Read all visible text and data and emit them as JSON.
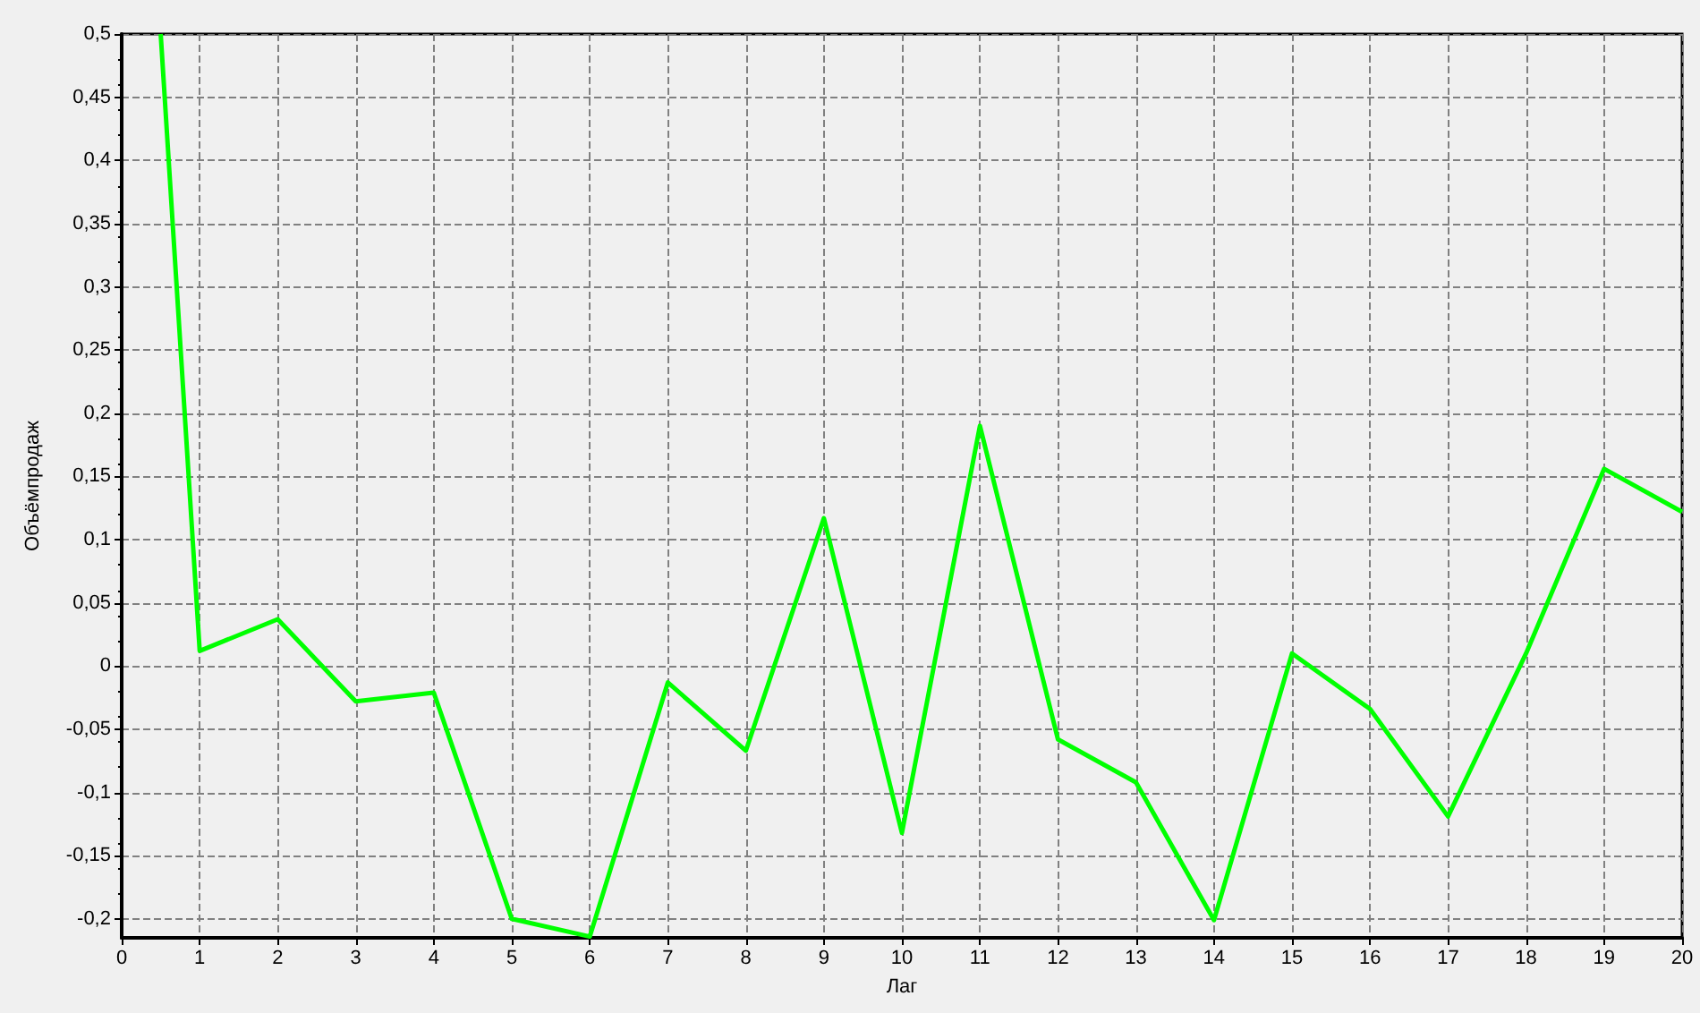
{
  "chart_data": {
    "type": "line",
    "xlabel": "Лаг",
    "ylabel": "Объёмпродаж",
    "x": [
      0.5,
      1,
      2,
      3,
      4,
      5,
      6,
      7,
      8,
      9,
      10,
      11,
      12,
      13,
      14,
      15,
      16,
      17,
      18,
      19,
      20
    ],
    "series": [
      {
        "color": "#00ff00",
        "values": [
          0.5,
          0.012,
          0.037,
          -0.028,
          -0.021,
          -0.2,
          -0.214,
          -0.013,
          -0.067,
          0.117,
          -0.132,
          0.19,
          -0.058,
          -0.092,
          -0.201,
          0.01,
          -0.034,
          -0.119,
          0.01,
          0.156,
          0.122
        ]
      }
    ],
    "xlim": [
      0,
      20
    ],
    "xticks": [
      0,
      1,
      2,
      3,
      4,
      5,
      6,
      7,
      8,
      9,
      10,
      11,
      12,
      13,
      14,
      15,
      16,
      17,
      18,
      19,
      20
    ],
    "ylim": [
      -0.215,
      0.5
    ],
    "yticks": [
      {
        "value": -0.2,
        "label": "-0,2"
      },
      {
        "value": -0.15,
        "label": "-0,15"
      },
      {
        "value": -0.1,
        "label": "-0,1"
      },
      {
        "value": -0.05,
        "label": "-0,05"
      },
      {
        "value": 0,
        "label": "0"
      },
      {
        "value": 0.05,
        "label": "0,05"
      },
      {
        "value": 0.1,
        "label": "0,1"
      },
      {
        "value": 0.15,
        "label": "0,15"
      },
      {
        "value": 0.2,
        "label": "0,2"
      },
      {
        "value": 0.25,
        "label": "0,25"
      },
      {
        "value": 0.3,
        "label": "0,3"
      },
      {
        "value": 0.35,
        "label": "0,35"
      },
      {
        "value": 0.4,
        "label": "0,4"
      },
      {
        "value": 0.45,
        "label": "0,45"
      },
      {
        "value": 0.5,
        "label": "0,5"
      }
    ],
    "grid": true,
    "marker": "none",
    "line_style": "solid"
  }
}
